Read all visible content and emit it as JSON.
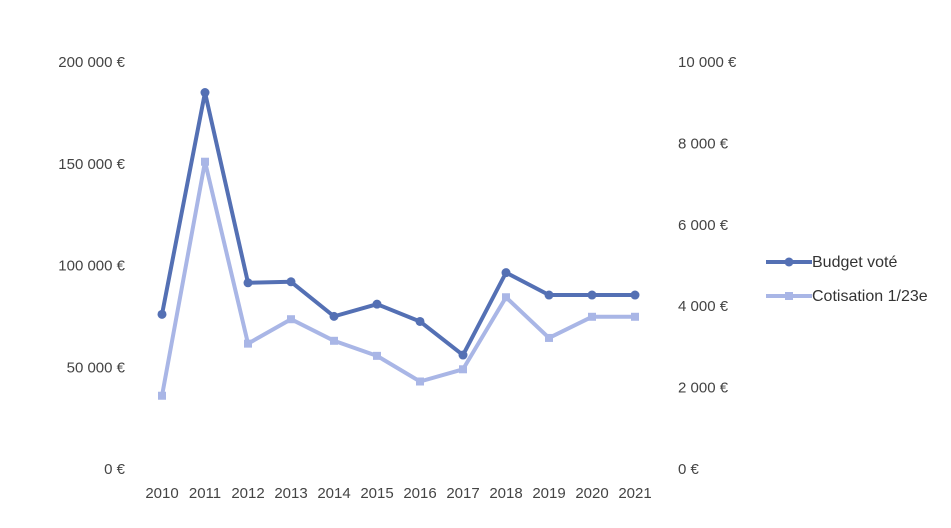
{
  "chart_data": {
    "type": "line",
    "categories": [
      "2010",
      "2011",
      "2012",
      "2013",
      "2014",
      "2015",
      "2016",
      "2017",
      "2018",
      "2019",
      "2020",
      "2021"
    ],
    "y_left": {
      "ylim": [
        0,
        200000
      ],
      "ticks": [
        0,
        50000,
        100000,
        150000,
        200000
      ],
      "tick_labels": [
        "0 €",
        "50 000 €",
        "100 000 €",
        "150 000 €",
        "200 000 €"
      ]
    },
    "y_right": {
      "ylim": [
        0,
        10000
      ],
      "ticks": [
        0,
        2000,
        4000,
        6000,
        8000,
        10000
      ],
      "tick_labels": [
        "0 €",
        "2 000 €",
        "4 000 €",
        "6 000 €",
        "8 000 €",
        "10 000 €"
      ]
    },
    "series": [
      {
        "name": "Budget voté",
        "axis": "left",
        "color": "#5470b4",
        "marker": "circle",
        "values": [
          76000,
          185000,
          91500,
          92000,
          75000,
          81000,
          72500,
          56000,
          96500,
          85500,
          85500,
          85500
        ]
      },
      {
        "name": "Cotisation 1/23e",
        "axis": "right",
        "color": "#a9b6e6",
        "marker": "square",
        "values": [
          1800,
          7550,
          3080,
          3680,
          3150,
          2780,
          2150,
          2450,
          4220,
          3220,
          3740,
          3740
        ]
      }
    ],
    "legend_position": "right",
    "grid": false
  }
}
